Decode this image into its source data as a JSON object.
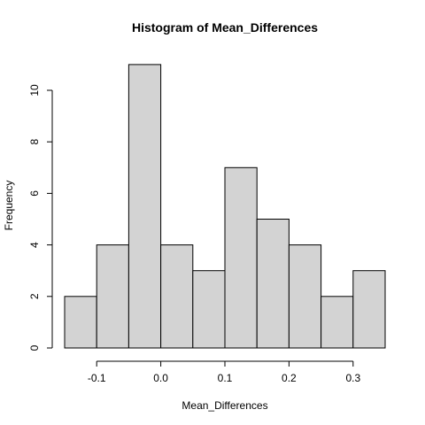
{
  "chart_data": {
    "type": "bar",
    "title": "Histogram of Mean_Differences",
    "xlabel": "Mean_Differences",
    "ylabel": "Frequency",
    "bins": [
      {
        "start": -0.15,
        "end": -0.1,
        "count": 2
      },
      {
        "start": -0.1,
        "end": -0.05,
        "count": 4
      },
      {
        "start": -0.05,
        "end": 0.0,
        "count": 11
      },
      {
        "start": 0.0,
        "end": 0.05,
        "count": 4
      },
      {
        "start": 0.05,
        "end": 0.1,
        "count": 3
      },
      {
        "start": 0.1,
        "end": 0.15,
        "count": 7
      },
      {
        "start": 0.15,
        "end": 0.2,
        "count": 5
      },
      {
        "start": 0.2,
        "end": 0.25,
        "count": 4
      },
      {
        "start": 0.25,
        "end": 0.3,
        "count": 2
      },
      {
        "start": 0.3,
        "end": 0.35,
        "count": 3
      }
    ],
    "xlim": [
      -0.15,
      0.35
    ],
    "ylim": [
      0,
      11
    ],
    "x_ticks": [
      {
        "value": -0.1,
        "label": "-0.1"
      },
      {
        "value": 0.0,
        "label": "0.0"
      },
      {
        "value": 0.1,
        "label": "0.1"
      },
      {
        "value": 0.2,
        "label": "0.2"
      },
      {
        "value": 0.3,
        "label": "0.3"
      }
    ],
    "y_ticks": [
      {
        "value": 0,
        "label": "0"
      },
      {
        "value": 2,
        "label": "2"
      },
      {
        "value": 4,
        "label": "4"
      },
      {
        "value": 6,
        "label": "6"
      },
      {
        "value": 8,
        "label": "8"
      },
      {
        "value": 10,
        "label": "10"
      }
    ],
    "grid": false,
    "bar_color": "#d3d3d3",
    "edge_color": "#000000"
  }
}
